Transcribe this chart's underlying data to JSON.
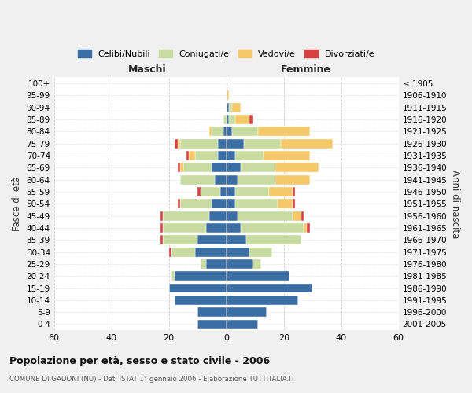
{
  "age_groups": [
    "0-4",
    "5-9",
    "10-14",
    "15-19",
    "20-24",
    "25-29",
    "30-34",
    "35-39",
    "40-44",
    "45-49",
    "50-54",
    "55-59",
    "60-64",
    "65-69",
    "70-74",
    "75-79",
    "80-84",
    "85-89",
    "90-94",
    "95-99",
    "100+"
  ],
  "birth_years": [
    "2001-2005",
    "1996-2000",
    "1991-1995",
    "1986-1990",
    "1981-1985",
    "1976-1980",
    "1971-1975",
    "1966-1970",
    "1961-1965",
    "1956-1960",
    "1951-1955",
    "1946-1950",
    "1941-1945",
    "1936-1940",
    "1931-1935",
    "1926-1930",
    "1921-1925",
    "1916-1920",
    "1911-1915",
    "1906-1910",
    "≤ 1905"
  ],
  "colors": {
    "celibe": "#3a6ea5",
    "coniugato": "#c8dba0",
    "vedovo": "#f5c96a",
    "divorziato": "#d94040"
  },
  "maschi": {
    "celibe": [
      10,
      10,
      18,
      20,
      18,
      7,
      11,
      10,
      7,
      6,
      5,
      2,
      4,
      5,
      3,
      3,
      1,
      0,
      0,
      0,
      0
    ],
    "coniugato": [
      0,
      0,
      0,
      0,
      1,
      2,
      8,
      12,
      15,
      16,
      11,
      7,
      12,
      10,
      8,
      13,
      4,
      1,
      0,
      0,
      0
    ],
    "vedovo": [
      0,
      0,
      0,
      0,
      0,
      0,
      0,
      0,
      0,
      0,
      0,
      0,
      0,
      1,
      2,
      1,
      1,
      0,
      0,
      0,
      0
    ],
    "divorziato": [
      0,
      0,
      0,
      0,
      0,
      0,
      1,
      1,
      1,
      1,
      1,
      1,
      0,
      1,
      1,
      1,
      0,
      0,
      0,
      0,
      0
    ]
  },
  "femmine": {
    "nubile": [
      11,
      14,
      25,
      30,
      22,
      9,
      8,
      7,
      5,
      4,
      3,
      3,
      4,
      5,
      3,
      6,
      2,
      1,
      1,
      0,
      0
    ],
    "coniugata": [
      0,
      0,
      0,
      0,
      0,
      3,
      8,
      19,
      22,
      19,
      15,
      12,
      13,
      12,
      10,
      13,
      9,
      2,
      1,
      0,
      0
    ],
    "vedova": [
      0,
      0,
      0,
      0,
      0,
      0,
      0,
      0,
      1,
      3,
      5,
      8,
      12,
      15,
      16,
      18,
      18,
      5,
      3,
      1,
      0
    ],
    "divorziata": [
      0,
      0,
      0,
      0,
      0,
      0,
      0,
      0,
      1,
      1,
      1,
      1,
      0,
      0,
      0,
      0,
      0,
      1,
      0,
      0,
      0
    ]
  },
  "xlim": 60,
  "title": "Popolazione per età, sesso e stato civile - 2006",
  "subtitle": "COMUNE DI GADONI (NU) - Dati ISTAT 1° gennaio 2006 - Elaborazione TUTTITALIA.IT",
  "ylabel_left": "Fasce di età",
  "ylabel_right": "Anni di nascita",
  "legend_labels": [
    "Celibi/Nubili",
    "Coniugati/e",
    "Vedovi/e",
    "Divorziati/e"
  ],
  "background_color": "#f0f0f0",
  "plot_bg": "#ffffff",
  "maschi_label": "Maschi",
  "femmine_label": "Femmine"
}
